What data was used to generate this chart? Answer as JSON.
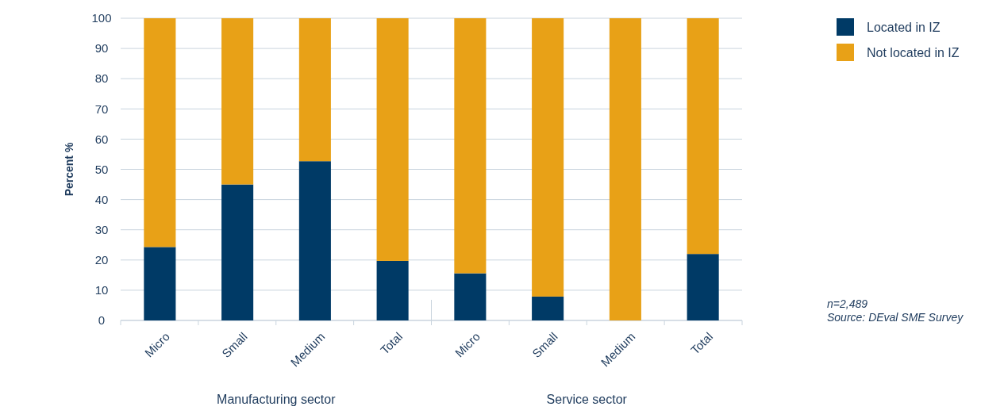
{
  "chart_data": {
    "type": "bar",
    "stacked": true,
    "ylabel": "Percent %",
    "categories": [
      "Micro",
      "Small",
      "Medium",
      "Total",
      "Micro",
      "Small",
      "Medium",
      "Total"
    ],
    "series": [
      {
        "name": "Located in IZ",
        "color": "#003a66",
        "values": [
          24.3,
          45,
          52.7,
          19.7,
          15.6,
          7.9,
          0,
          22
        ]
      },
      {
        "name": "Not located in IZ",
        "color": "#e8a117",
        "values": [
          75.7,
          55,
          47.3,
          80.3,
          84.4,
          92.1,
          100,
          78
        ]
      }
    ],
    "ylim": [
      0,
      100
    ],
    "yticks": [
      0,
      10,
      20,
      30,
      40,
      50,
      60,
      70,
      80,
      90,
      100
    ],
    "grid": "y",
    "legend": "top right",
    "annotations": [
      "Manufacturing sector",
      "Service sector",
      "n=2,489",
      "Source: DEval SME Survey"
    ]
  }
}
